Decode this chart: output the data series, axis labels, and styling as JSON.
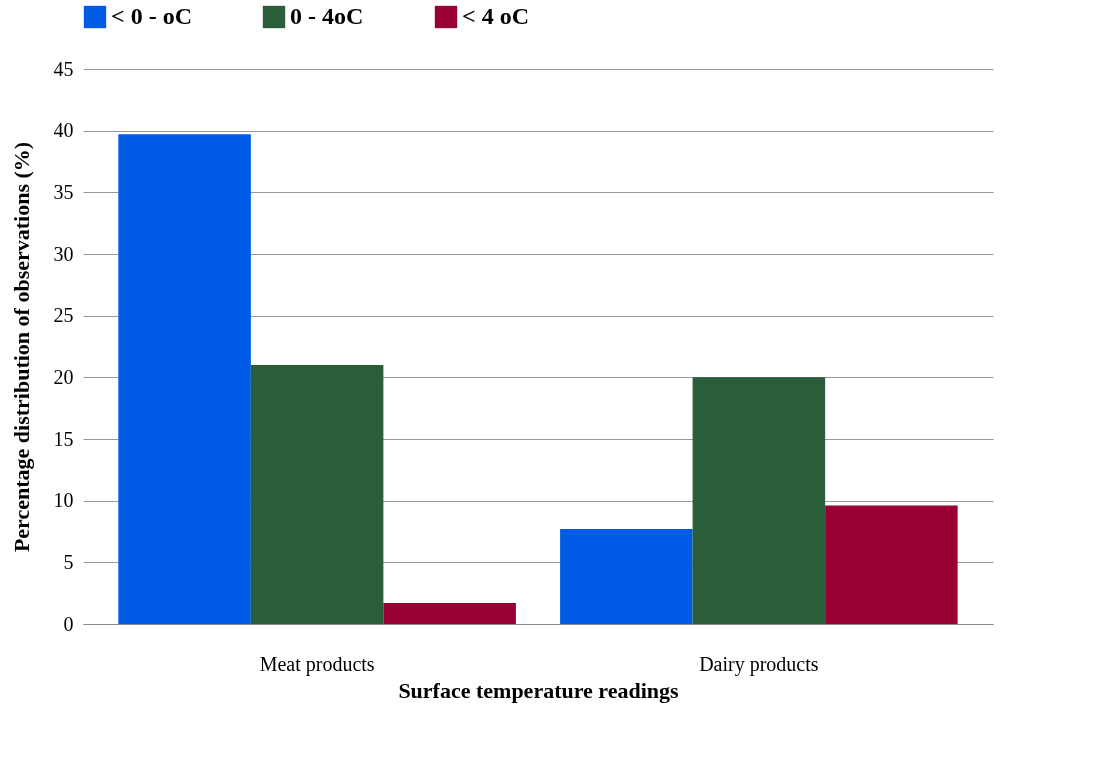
{
  "chart_data": {
    "type": "bar",
    "xlabel": "Surface temperature readings",
    "ylabel": "Percentage distribution  of observations (%)",
    "categories": [
      "Meat products",
      "Dairy products"
    ],
    "series": [
      {
        "name": "< 0 - oC",
        "color": "#005ce6",
        "values": [
          39.7,
          7.7
        ]
      },
      {
        "name": "0 - 4oC",
        "color": "#2a5e3a",
        "values": [
          21.0,
          20.0
        ]
      },
      {
        "name": "< 4 oC",
        "color": "#990033",
        "values": [
          1.7,
          9.6
        ]
      }
    ],
    "ylim": [
      0,
      45
    ],
    "yticks": [
      0,
      5,
      10,
      15,
      20,
      25,
      30,
      35,
      40,
      45
    ],
    "grid": "y",
    "legend": "top"
  }
}
